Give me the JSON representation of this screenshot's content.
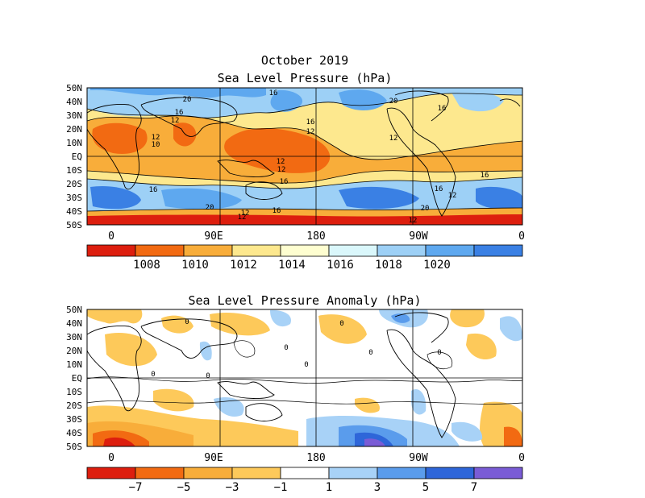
{
  "colors": {
    "background": "#ffffff",
    "contour": "#000000",
    "slp_scale": [
      "#dd1e0e",
      "#f26a12",
      "#f8ad3a",
      "#fde88e",
      "#fefed0",
      "#daf7fb",
      "#9dd0f6",
      "#5ea8ef",
      "#3a80e4"
    ],
    "anom_scale": [
      "#dd1e0e",
      "#f26a12",
      "#f8ad3a",
      "#fdc95a",
      "#ffffff",
      "#a8d2f7",
      "#5a9cec",
      "#2e66d9",
      "#7a5cd6"
    ]
  },
  "top": {
    "title_line1": "October 2019",
    "title_line2": "Sea Level Pressure (hPa)",
    "lat_labels": [
      "50N",
      "40N",
      "30N",
      "20N",
      "10N",
      "EQ",
      "10S",
      "20S",
      "30S",
      "40S",
      "50S"
    ],
    "lon_labels": [
      "0",
      "90E",
      "180",
      "90W",
      "0"
    ],
    "colorbar_labels": [
      "1008",
      "1010",
      "1012",
      "1014",
      "1016",
      "1018",
      "1020"
    ],
    "contour_labels": [
      "20",
      "16",
      "16",
      "12",
      "12",
      "12",
      "10",
      "16",
      "12",
      "20",
      "16",
      "12",
      "12",
      "16",
      "16",
      "16",
      "20",
      "12",
      "12",
      "16",
      "20",
      "12",
      "16",
      "12"
    ]
  },
  "bottom": {
    "title": "Sea Level Pressure Anomaly (hPa)",
    "lat_labels": [
      "50N",
      "40N",
      "30N",
      "20N",
      "10N",
      "EQ",
      "10S",
      "20S",
      "30S",
      "40S",
      "50S"
    ],
    "lon_labels": [
      "0",
      "90E",
      "180",
      "90W",
      "0"
    ],
    "colorbar_labels": [
      "−7",
      "−5",
      "−3",
      "−1",
      "1",
      "3",
      "5",
      "7"
    ],
    "contour_labels": [
      "0",
      "0",
      "0",
      "0",
      "0",
      "0",
      "0",
      "0"
    ]
  }
}
